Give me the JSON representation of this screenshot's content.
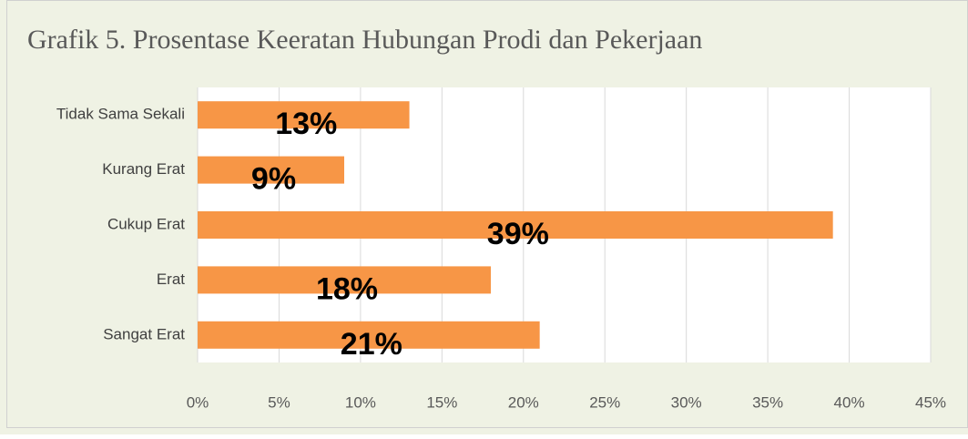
{
  "chart_data": {
    "type": "bar",
    "orientation": "horizontal",
    "title": "Grafik 5. Prosentase Keeratan Hubungan Prodi dan Pekerjaan",
    "categories": [
      "Tidak Sama Sekali",
      "Kurang Erat",
      "Cukup Erat",
      "Erat",
      "Sangat Erat"
    ],
    "values": [
      13,
      9,
      39,
      18,
      21
    ],
    "value_labels": [
      "13%",
      "9%",
      "39%",
      "18%",
      "21%"
    ],
    "color": "#f79646",
    "xlim": [
      0,
      45
    ],
    "xticks": [
      {
        "value": 0,
        "label": "0%"
      },
      {
        "value": 5,
        "label": "5%"
      },
      {
        "value": 10,
        "label": "10%"
      },
      {
        "value": 15,
        "label": "15%"
      },
      {
        "value": 20,
        "label": "20%"
      },
      {
        "value": 25,
        "label": "25%"
      },
      {
        "value": 30,
        "label": "30%"
      },
      {
        "value": 35,
        "label": "35%"
      },
      {
        "value": 40,
        "label": "40%"
      },
      {
        "value": 45,
        "label": "45%"
      }
    ],
    "grid": true
  }
}
